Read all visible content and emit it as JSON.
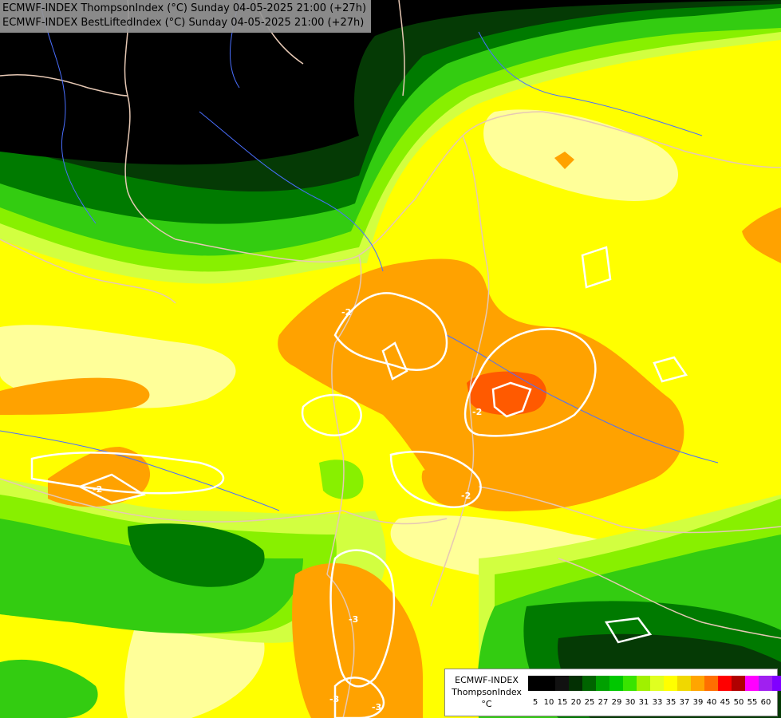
{
  "header": {
    "line1": "ECMWF-INDEX ThompsonIndex (°C) Sunday 04-05-2025 21:00 (+27h)",
    "line2": "ECMWF-INDEX BestLiftedIndex (°C) Sunday 04-05-2025 21:00 (+27h)"
  },
  "legend": {
    "title_line1": "ECMWF-INDEX",
    "title_line2": "ThompsonIndex",
    "unit": "°C",
    "ticks": [
      "5",
      "10",
      "15",
      "20",
      "25",
      "27",
      "29",
      "30",
      "31",
      "33",
      "35",
      "37",
      "39",
      "40",
      "45",
      "50",
      "55",
      "60"
    ],
    "colors": [
      "#000000",
      "#000000",
      "#111111",
      "#033003",
      "#006400",
      "#00a000",
      "#00c800",
      "#38e400",
      "#a0f000",
      "#e0ff20",
      "#ffff00",
      "#f0d800",
      "#ffa500",
      "#ff6f00",
      "#ff0000",
      "#b00000",
      "#ff00ff",
      "#a020f0",
      "#8000ff",
      "#2020ff"
    ]
  },
  "contour_labels": [
    "-2",
    "-2",
    "-2",
    "-2",
    "-3",
    "-3",
    "-3"
  ],
  "colors": {
    "black": "#000000",
    "dark_green": "#053a05",
    "green": "#007a00",
    "bright_green": "#33cc11",
    "light_green": "#88f000",
    "yellow_green": "#d2ff40",
    "yellow": "#ffff00",
    "pale_yellow": "#ffff99",
    "orange": "#ffa200",
    "red_orange": "#ff5a00",
    "contour": "#ffffff",
    "border": "#e6c8b4",
    "river": "#4a6fff"
  }
}
